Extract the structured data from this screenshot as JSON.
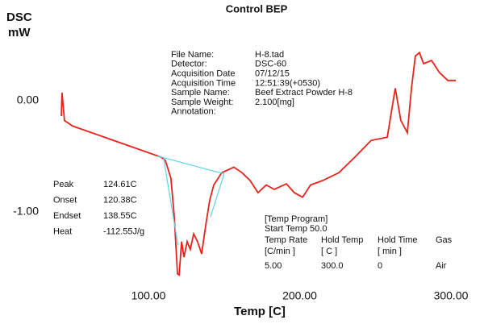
{
  "chart_data": {
    "type": "line",
    "title": "Control BEP",
    "ylabel": [
      "DSC",
      "mW"
    ],
    "xlabel": "Temp  [C]",
    "xlim": [
      30,
      318
    ],
    "ylim": [
      -1.67,
      0.65
    ],
    "xticks": [
      {
        "value": 100,
        "label": "100.00"
      },
      {
        "value": 200,
        "label": "200.00"
      },
      {
        "value": 300,
        "label": "300.00"
      }
    ],
    "yticks": [
      {
        "value": 0,
        "label": "0.00"
      },
      {
        "value": -1,
        "label": "-1.00"
      }
    ],
    "series": [
      {
        "color": "#e8231c",
        "x": [
          42.4,
          42.9,
          44.5,
          49.9,
          108.5,
          111.2,
          114.9,
          117.1,
          119.2,
          120.3,
          121.9,
          123.5,
          125.6,
          127.7,
          129.9,
          132.5,
          135.2,
          137.9,
          140.5,
          143.2,
          148.5,
          156.5,
          161.9,
          167.2,
          172.5,
          177.9,
          183.2,
          191.2,
          196.5,
          201.9,
          207.2,
          215.2,
          225.9,
          236.5,
          247.2,
          257.9,
          263.2,
          266.9,
          271.2,
          273.9,
          276.5,
          279.2,
          281.9,
          287.2,
          292.5,
          297.9,
          303.2
        ],
        "values": [
          -0.14,
          0.07,
          -0.18,
          -0.23,
          -0.51,
          -0.54,
          -0.7,
          -1.05,
          -1.56,
          -1.57,
          -1.27,
          -1.41,
          -1.27,
          -1.34,
          -1.2,
          -1.27,
          -1.38,
          -1.12,
          -0.9,
          -0.76,
          -0.65,
          -0.6,
          -0.65,
          -0.72,
          -0.83,
          -0.76,
          -0.8,
          -0.75,
          -0.83,
          -0.87,
          -0.76,
          -0.72,
          -0.65,
          -0.51,
          -0.36,
          -0.33,
          0.11,
          -0.18,
          -0.29,
          0.11,
          0.4,
          0.43,
          0.33,
          0.36,
          0.25,
          0.18,
          0.18
        ]
      },
      {
        "color": "#5fd3e6",
        "x": [
          106,
          150
        ],
        "values": [
          -0.5,
          -0.66
        ]
      },
      {
        "color": "#5fd3e6",
        "x": [
          110,
          119.5
        ],
        "values": [
          -0.52,
          -1.3
        ]
      },
      {
        "color": "#5fd3e6",
        "x": [
          150,
          141
        ],
        "values": [
          -0.66,
          -1.05
        ]
      }
    ],
    "info": [
      [
        "File Name:",
        "H-8.tad"
      ],
      [
        "Detector:",
        "DSC-60"
      ],
      [
        "Acquisition Date",
        "07/12/15"
      ],
      [
        "Acquisition Time",
        "12:51:39(+0530)"
      ],
      [
        "Sample Name:",
        "Beef Extract Powder H-8"
      ],
      [
        "Sample Weight:",
        "2.100[mg]"
      ],
      [
        "Annotation:",
        ""
      ]
    ],
    "peak": [
      [
        "Peak",
        "124.61C"
      ],
      [
        "Onset",
        "120.38C"
      ],
      [
        "Endset",
        "138.55C"
      ],
      [
        "Heat",
        "-112.55J/g"
      ]
    ],
    "program": {
      "title": "[Temp Program]",
      "start": "Start Temp 50.0",
      "rows": [
        [
          "Temp Rate",
          "Hold Temp",
          "Hold Time",
          "Gas"
        ],
        [
          "[C/min ]",
          "[  C  ]",
          "[  min  ]"
        ],
        [
          "5.00",
          "300.0",
          "0",
          "Air"
        ]
      ]
    }
  }
}
